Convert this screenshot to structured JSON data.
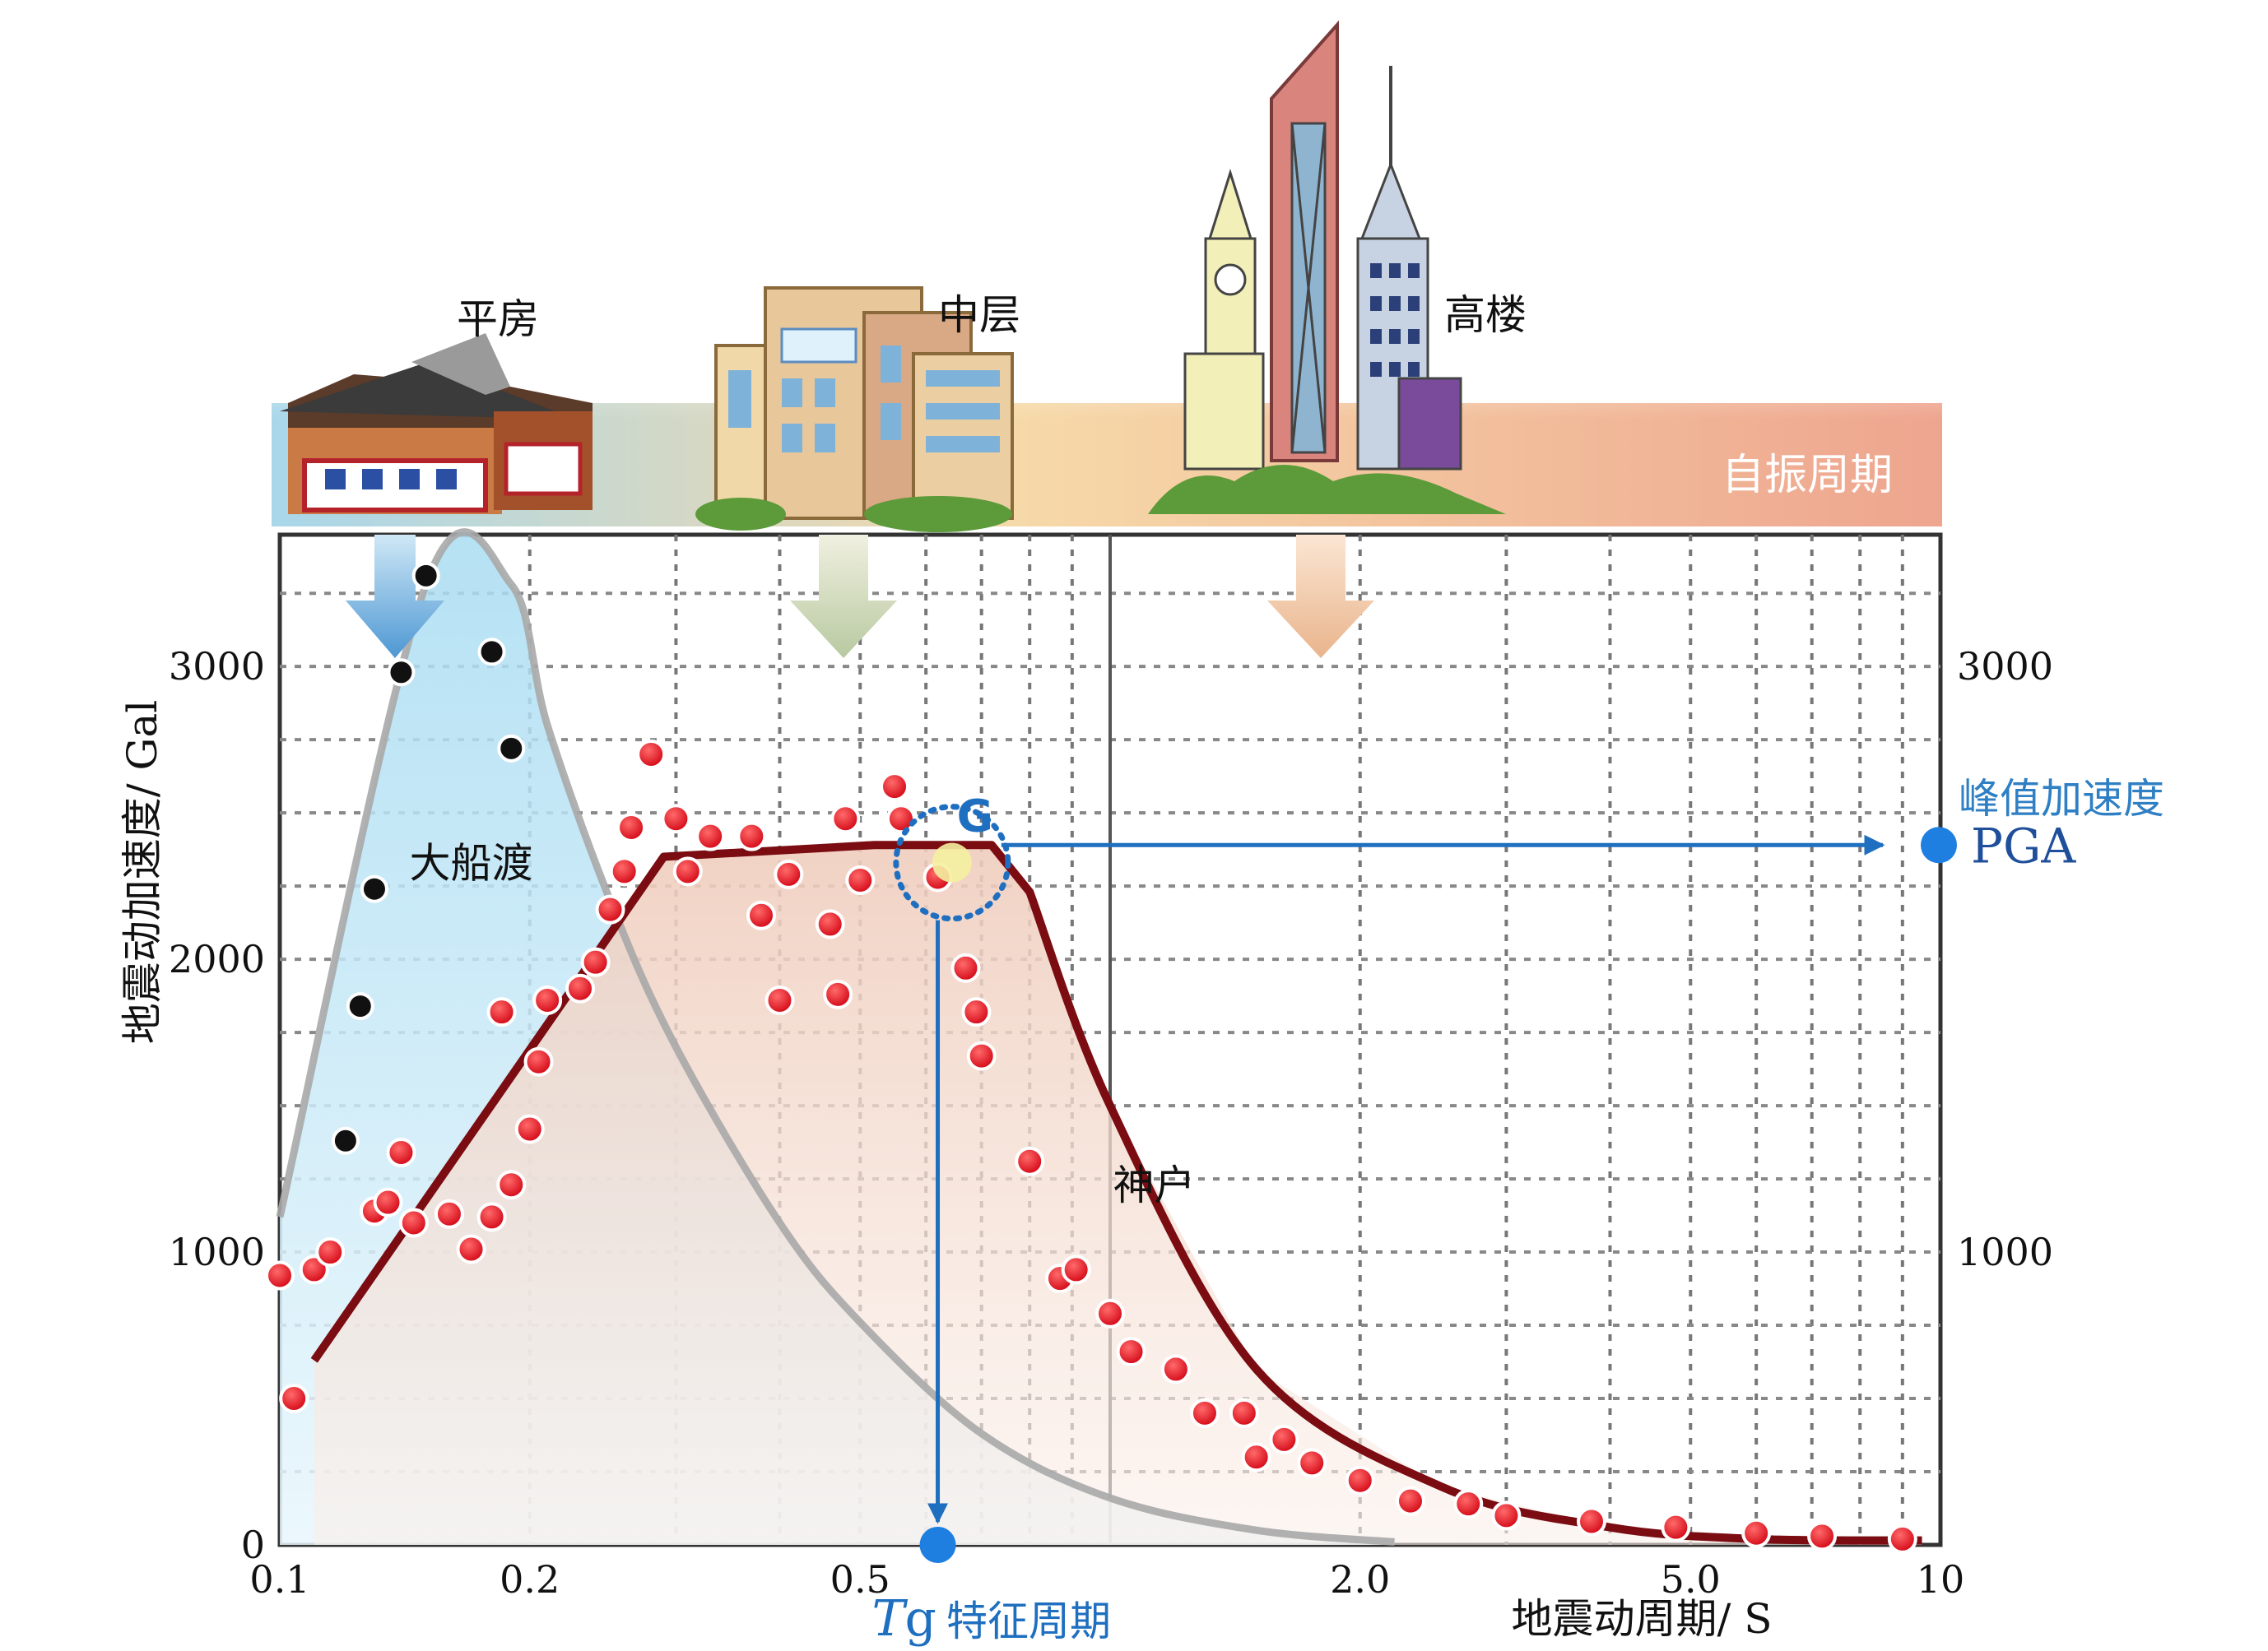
{
  "header": {
    "building_labels": [
      "平房",
      "中层",
      "高楼"
    ],
    "period_band_label": "自振周期"
  },
  "annotations": {
    "osaka_curve_label": "大船渡",
    "kobe_curve_label": "神户",
    "point_g": "G",
    "pga_cn": "峰值加速度",
    "pga_en": "PGA",
    "tg_italic": "T",
    "tg_sub": "g",
    "tg_cn": "特征周期"
  },
  "colors": {
    "design_spectrum": "#7a0c12",
    "observed_points": "#e0101a",
    "ofunato_points": "#111111",
    "ofunato_curve": "#a9a9a9",
    "ofunato_fill": "#bfe4f4",
    "kobe_fill": "#f2d9cf",
    "accent_blue": "#1f6fc0",
    "band_start": "#a9d7ea",
    "band_mid": "#f6d9a8",
    "band_end": "#eea58f"
  },
  "chart_data": {
    "type": "scatter",
    "x_scale": "log",
    "xlabel": "地震动周期/ S",
    "ylabel": "地震动加速度/ Gal",
    "xlim": [
      0.1,
      10
    ],
    "ylim": [
      0,
      3450
    ],
    "x_ticks": [
      {
        "value": 0.1,
        "label": "0.1"
      },
      {
        "value": 0.2,
        "label": "0.2"
      },
      {
        "value": 0.5,
        "label": "0.5"
      },
      {
        "value": 2.0,
        "label": "2.0"
      },
      {
        "value": 5.0,
        "label": "5.0"
      },
      {
        "value": 10,
        "label": "10"
      }
    ],
    "y_ticks_left": [
      {
        "value": 0,
        "label": "0"
      },
      {
        "value": 1000,
        "label": "1000"
      },
      {
        "value": 2000,
        "label": "2000"
      },
      {
        "value": 3000,
        "label": "3000"
      }
    ],
    "y_ticks_right": [
      {
        "value": 1000,
        "label": "1000"
      },
      {
        "value": 3000,
        "label": "3000"
      }
    ],
    "grid": true,
    "series": [
      {
        "name": "神户",
        "kind": "points",
        "points": [
          [
            0.1,
            920
          ],
          [
            0.104,
            500
          ],
          [
            0.11,
            940
          ],
          [
            0.115,
            1000
          ],
          [
            0.13,
            1140
          ],
          [
            0.135,
            1170
          ],
          [
            0.14,
            1340
          ],
          [
            0.145,
            1100
          ],
          [
            0.16,
            1130
          ],
          [
            0.17,
            1010
          ],
          [
            0.18,
            1120
          ],
          [
            0.185,
            1820
          ],
          [
            0.19,
            1230
          ],
          [
            0.2,
            1420
          ],
          [
            0.205,
            1650
          ],
          [
            0.21,
            1860
          ],
          [
            0.23,
            1900
          ],
          [
            0.24,
            1990
          ],
          [
            0.25,
            2170
          ],
          [
            0.26,
            2300
          ],
          [
            0.265,
            2450
          ],
          [
            0.28,
            2700
          ],
          [
            0.3,
            2480
          ],
          [
            0.31,
            2300
          ],
          [
            0.33,
            2420
          ],
          [
            0.37,
            2420
          ],
          [
            0.38,
            2150
          ],
          [
            0.4,
            1860
          ],
          [
            0.41,
            2290
          ],
          [
            0.46,
            2120
          ],
          [
            0.47,
            1880
          ],
          [
            0.48,
            2480
          ],
          [
            0.5,
            2270
          ],
          [
            0.55,
            2590
          ],
          [
            0.56,
            2480
          ],
          [
            0.62,
            2280
          ],
          [
            0.67,
            1970
          ],
          [
            0.69,
            1820
          ],
          [
            0.7,
            1670
          ],
          [
            0.8,
            1310
          ],
          [
            0.87,
            910
          ],
          [
            0.91,
            940
          ],
          [
            1.0,
            790
          ],
          [
            1.06,
            660
          ],
          [
            1.2,
            600
          ],
          [
            1.3,
            450
          ],
          [
            1.45,
            450
          ],
          [
            1.5,
            300
          ],
          [
            1.62,
            360
          ],
          [
            1.75,
            280
          ],
          [
            2.0,
            220
          ],
          [
            2.3,
            150
          ],
          [
            2.7,
            140
          ],
          [
            3.0,
            100
          ],
          [
            3.8,
            80
          ],
          [
            4.8,
            60
          ],
          [
            6.0,
            40
          ],
          [
            7.2,
            30
          ],
          [
            9.0,
            20
          ]
        ]
      },
      {
        "name": "大船渡",
        "kind": "points",
        "points": [
          [
            0.12,
            1380
          ],
          [
            0.125,
            1840
          ],
          [
            0.13,
            2240
          ],
          [
            0.14,
            2980
          ],
          [
            0.15,
            3310
          ],
          [
            0.18,
            3050
          ],
          [
            0.19,
            2720
          ]
        ]
      },
      {
        "name": "大船渡",
        "kind": "curve",
        "points": [
          [
            0.1,
            1120
          ],
          [
            0.15,
            3280
          ],
          [
            0.19,
            3280
          ],
          [
            0.21,
            2800
          ],
          [
            0.25,
            2200
          ],
          [
            0.3,
            1700
          ],
          [
            0.4,
            1100
          ],
          [
            0.5,
            760
          ],
          [
            0.7,
            380
          ],
          [
            1.0,
            160
          ],
          [
            1.5,
            50
          ],
          [
            2.2,
            10
          ]
        ]
      },
      {
        "name": "",
        "kind": "design-spectrum",
        "points": [
          [
            0.11,
            630
          ],
          [
            0.29,
            2350
          ],
          [
            0.52,
            2390
          ],
          [
            0.72,
            2390
          ],
          [
            0.8,
            2230
          ],
          [
            1.0,
            1500
          ],
          [
            1.5,
            600
          ],
          [
            2.5,
            200
          ],
          [
            4.0,
            60
          ],
          [
            6.0,
            20
          ],
          [
            9.5,
            15
          ]
        ]
      }
    ],
    "characteristic_period": {
      "x": 0.62,
      "y": 0
    },
    "pga_value": 2390
  }
}
